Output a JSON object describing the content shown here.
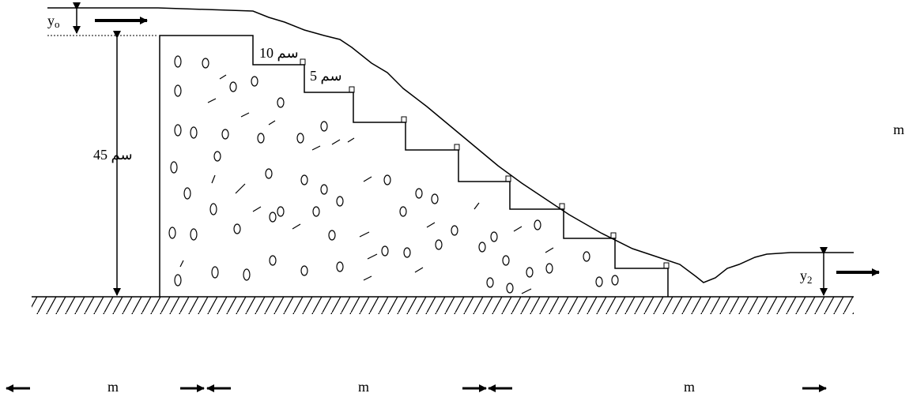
{
  "upstream_depth": {
    "symbol": "y",
    "subscript": "o"
  },
  "downstream_depth": {
    "symbol": "y",
    "subscript": "2"
  },
  "step_height": "10 سم",
  "step_length": "5 سم",
  "weir_height": "45 سم",
  "side_unit": "m",
  "bottom_units": [
    "m",
    "m",
    "m"
  ]
}
